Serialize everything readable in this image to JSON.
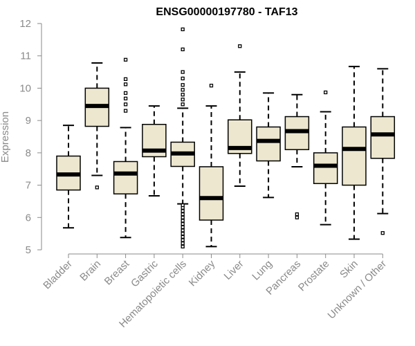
{
  "colors": {
    "box_fill": "#ede7cf",
    "box_stroke": "#000000",
    "axis": "#8a8a8a",
    "text": "#8a8a8a",
    "title": "#000000"
  },
  "chart_data": {
    "type": "boxplot",
    "title": "ENSG00000197780 - TAF13",
    "xlabel": "",
    "ylabel": "Expression",
    "ylim": [
      5,
      12
    ],
    "yticks": [
      5,
      6,
      7,
      8,
      9,
      10,
      11,
      12
    ],
    "grid": false,
    "categories": [
      "Bladder",
      "Brain",
      "Breast",
      "Gastric",
      "Hematopoietic cells",
      "Kidney",
      "Liver",
      "Lung",
      "Pancreas",
      "Prostate",
      "Skin",
      "Unknown / Other"
    ],
    "boxes": [
      {
        "category": "Bladder",
        "whisker_low": 5.68,
        "q1": 6.85,
        "median": 7.33,
        "q3": 7.9,
        "whisker_high": 8.85,
        "outliers": []
      },
      {
        "category": "Brain",
        "whisker_low": 7.3,
        "q1": 8.82,
        "median": 9.45,
        "q3": 10.0,
        "whisker_high": 10.78,
        "outliers": [
          6.93
        ]
      },
      {
        "category": "Breast",
        "whisker_low": 5.38,
        "q1": 6.73,
        "median": 7.36,
        "q3": 7.73,
        "whisker_high": 8.78,
        "outliers": [
          9.3,
          9.5,
          9.68,
          9.85,
          10.12,
          10.28,
          10.88
        ]
      },
      {
        "category": "Gastric",
        "whisker_low": 6.67,
        "q1": 7.88,
        "median": 8.07,
        "q3": 8.88,
        "whisker_high": 9.45,
        "outliers": []
      },
      {
        "category": "Hematopoietic cells",
        "whisker_low": 6.42,
        "q1": 7.58,
        "median": 7.98,
        "q3": 8.33,
        "whisker_high": 9.38,
        "outliers": [
          5.1,
          5.2,
          5.3,
          5.4,
          5.5,
          5.6,
          5.7,
          5.8,
          5.9,
          6.0,
          6.1,
          6.2,
          6.3,
          6.38,
          9.5,
          9.65,
          9.8,
          9.95,
          10.1,
          10.3,
          10.5,
          11.2,
          11.82
        ]
      },
      {
        "category": "Kidney",
        "whisker_low": 5.1,
        "q1": 5.92,
        "median": 6.6,
        "q3": 7.57,
        "whisker_high": 9.45,
        "outliers": [
          10.08
        ]
      },
      {
        "category": "Liver",
        "whisker_low": 6.97,
        "q1": 7.98,
        "median": 8.15,
        "q3": 9.02,
        "whisker_high": 10.5,
        "outliers": [
          11.3
        ]
      },
      {
        "category": "Lung",
        "whisker_low": 6.62,
        "q1": 7.75,
        "median": 8.37,
        "q3": 8.8,
        "whisker_high": 9.85,
        "outliers": []
      },
      {
        "category": "Pancreas",
        "whisker_low": 7.57,
        "q1": 8.1,
        "median": 8.67,
        "q3": 9.12,
        "whisker_high": 9.8,
        "outliers": [
          6.0,
          6.1
        ]
      },
      {
        "category": "Prostate",
        "whisker_low": 5.78,
        "q1": 7.05,
        "median": 7.6,
        "q3": 8.0,
        "whisker_high": 9.27,
        "outliers": [
          9.87
        ]
      },
      {
        "category": "Skin",
        "whisker_low": 5.33,
        "q1": 7.0,
        "median": 8.12,
        "q3": 8.8,
        "whisker_high": 10.67,
        "outliers": []
      },
      {
        "category": "Unknown / Other",
        "whisker_low": 6.12,
        "q1": 7.83,
        "median": 8.57,
        "q3": 9.12,
        "whisker_high": 10.6,
        "outliers": [
          5.52
        ]
      }
    ]
  }
}
